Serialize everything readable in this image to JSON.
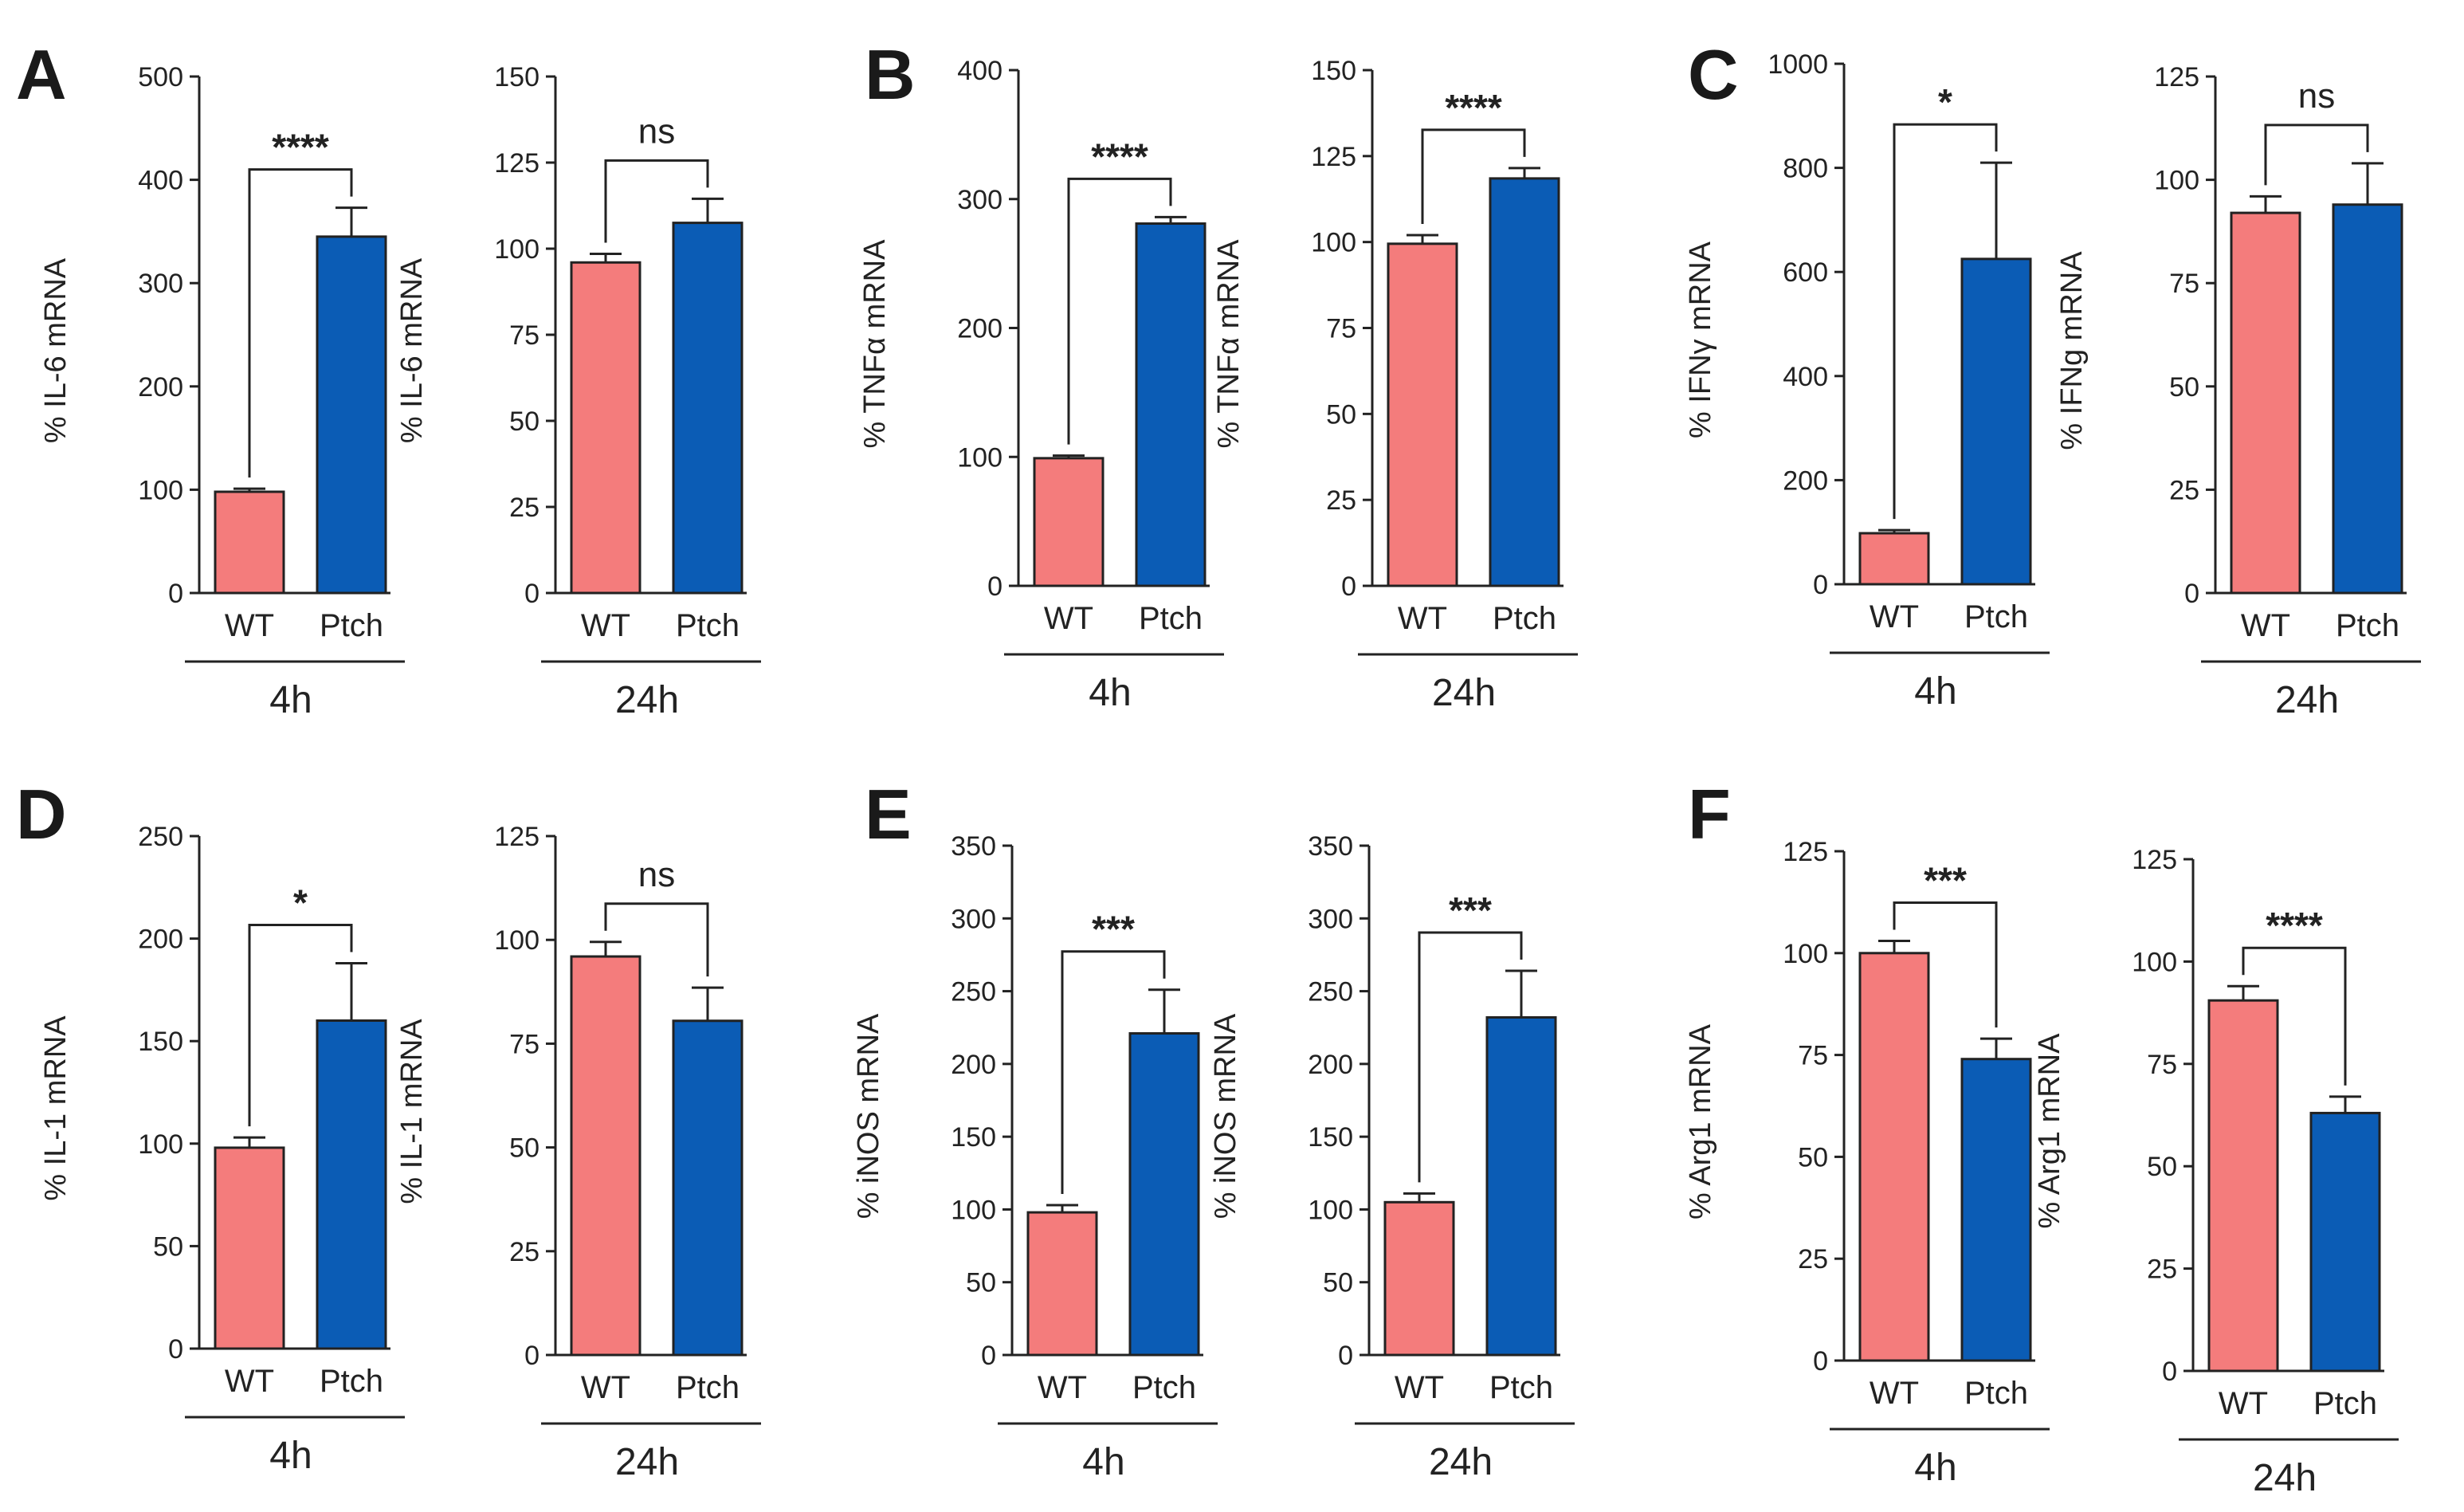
{
  "colors": {
    "wt": "#f47c7c",
    "ptch": "#0b5cb5",
    "axis": "#222222"
  },
  "chart_data": [
    {
      "panel": "A",
      "type": "bar",
      "categories": [
        "WT",
        "Ptch"
      ],
      "values": [
        98,
        345
      ],
      "errors": [
        3,
        28
      ],
      "ylabel": "% IL-6 mRNA",
      "ylim": [
        0,
        500
      ],
      "yticks": [
        0,
        100,
        200,
        300,
        400,
        500
      ],
      "sig": "****",
      "timepoint": "4h",
      "letter": "A"
    },
    {
      "panel": "A2",
      "type": "bar",
      "categories": [
        "WT",
        "Ptch"
      ],
      "values": [
        96,
        107.5
      ],
      "errors": [
        2.5,
        7
      ],
      "ylabel": "% IL-6 mRNA",
      "ylim": [
        0,
        150
      ],
      "yticks": [
        0,
        25,
        50,
        75,
        100,
        125,
        150
      ],
      "sig": "ns",
      "timepoint": "24h"
    },
    {
      "panel": "B",
      "type": "bar",
      "categories": [
        "WT",
        "Ptch"
      ],
      "values": [
        99,
        281
      ],
      "errors": [
        2,
        5
      ],
      "ylabel": "% TNFα mRNA",
      "ylim": [
        0,
        400
      ],
      "yticks": [
        0,
        100,
        200,
        300,
        400
      ],
      "sig": "****",
      "timepoint": "4h",
      "letter": "B"
    },
    {
      "panel": "B2",
      "type": "bar",
      "categories": [
        "WT",
        "Ptch"
      ],
      "values": [
        99.5,
        118.5
      ],
      "errors": [
        2.5,
        3
      ],
      "ylabel": "% TNFα mRNA",
      "ylim": [
        0,
        150
      ],
      "yticks": [
        0,
        25,
        50,
        75,
        100,
        125,
        150
      ],
      "sig": "****",
      "timepoint": "24h"
    },
    {
      "panel": "C",
      "type": "bar",
      "categories": [
        "WT",
        "Ptch"
      ],
      "values": [
        98,
        625
      ],
      "errors": [
        6,
        185
      ],
      "ylabel": "% IFNγ mRNA",
      "ylim": [
        0,
        1000
      ],
      "yticks": [
        0,
        200,
        400,
        600,
        800,
        1000
      ],
      "sig": "*",
      "timepoint": "4h",
      "letter": "C"
    },
    {
      "panel": "C2",
      "type": "bar",
      "categories": [
        "WT",
        "Ptch"
      ],
      "values": [
        92,
        94
      ],
      "errors": [
        4,
        10
      ],
      "ylabel": "% IFNg mRNA",
      "ylim": [
        0,
        125
      ],
      "yticks": [
        0,
        25,
        50,
        75,
        100,
        125
      ],
      "sig": "ns",
      "timepoint": "24h"
    },
    {
      "panel": "D",
      "type": "bar",
      "categories": [
        "WT",
        "Ptch"
      ],
      "values": [
        98,
        160
      ],
      "errors": [
        5,
        28
      ],
      "ylabel": "% IL-1 mRNA",
      "ylim": [
        0,
        250
      ],
      "yticks": [
        0,
        50,
        100,
        150,
        200,
        250
      ],
      "sig": "*",
      "timepoint": "4h",
      "letter": "D"
    },
    {
      "panel": "D2",
      "type": "bar",
      "categories": [
        "WT",
        "Ptch"
      ],
      "values": [
        96,
        80.5
      ],
      "errors": [
        3.5,
        8
      ],
      "ylabel": "% IL-1 mRNA",
      "ylim": [
        0,
        125
      ],
      "yticks": [
        0,
        25,
        50,
        75,
        100,
        125
      ],
      "sig": "ns",
      "timepoint": "24h"
    },
    {
      "panel": "E",
      "type": "bar",
      "categories": [
        "WT",
        "Ptch"
      ],
      "values": [
        98,
        221
      ],
      "errors": [
        5,
        30
      ],
      "ylabel": "% iNOS mRNA",
      "ylim": [
        0,
        350
      ],
      "yticks": [
        0,
        50,
        100,
        150,
        200,
        250,
        300,
        350
      ],
      "sig": "***",
      "timepoint": "4h",
      "letter": "E"
    },
    {
      "panel": "E2",
      "type": "bar",
      "categories": [
        "WT",
        "Ptch"
      ],
      "values": [
        105,
        232
      ],
      "errors": [
        6,
        32
      ],
      "ylabel": "% iNOS mRNA",
      "ylim": [
        0,
        350
      ],
      "yticks": [
        0,
        50,
        100,
        150,
        200,
        250,
        300,
        350
      ],
      "sig": "***",
      "timepoint": "24h"
    },
    {
      "panel": "F",
      "type": "bar",
      "categories": [
        "WT",
        "Ptch"
      ],
      "values": [
        100,
        74
      ],
      "errors": [
        3,
        5
      ],
      "ylabel": "% Arg1 mRNA",
      "ylim": [
        0,
        125
      ],
      "yticks": [
        0,
        25,
        50,
        75,
        100,
        125
      ],
      "sig": "***",
      "timepoint": "4h",
      "letter": "F"
    },
    {
      "panel": "F2",
      "type": "bar",
      "categories": [
        "WT",
        "Ptch"
      ],
      "values": [
        90.5,
        63
      ],
      "errors": [
        3.5,
        4
      ],
      "ylabel": "% Arg1 mRNA",
      "ylim": [
        0,
        125
      ],
      "yticks": [
        0,
        25,
        50,
        75,
        100,
        125
      ],
      "sig": "****",
      "timepoint": "24h"
    }
  ]
}
